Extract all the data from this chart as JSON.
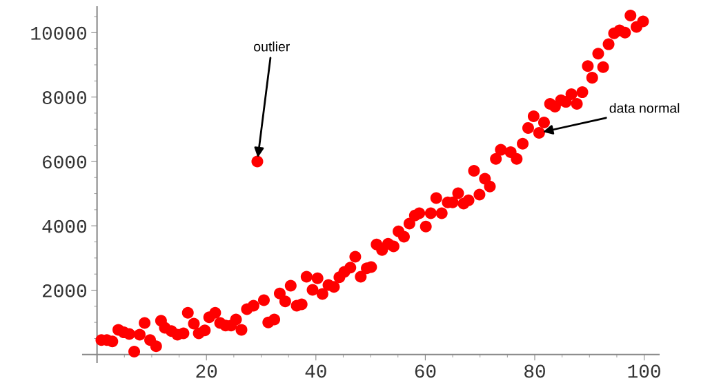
{
  "chart_data": {
    "type": "scatter",
    "marker": "circle",
    "grid": false,
    "legend": false,
    "x": [
      0.8,
      1.8,
      2.8,
      3.9,
      4.9,
      5.9,
      6.8,
      7.8,
      8.7,
      9.7,
      10.8,
      11.7,
      12.4,
      13.6,
      14.7,
      15.8,
      16.6,
      17.7,
      18.6,
      19.7,
      20.5,
      21.6,
      22.5,
      23.5,
      24.5,
      25.4,
      26.4,
      27.4,
      28.6,
      29.3,
      30.5,
      31.3,
      32.4,
      33.4,
      34.4,
      35.4,
      36.5,
      37.4,
      38.3,
      39.4,
      40.3,
      41.2,
      42.3,
      43.3,
      44.3,
      45.2,
      46.3,
      47.2,
      48.2,
      49.3,
      50.1,
      51.1,
      52.1,
      53.2,
      54.2,
      55.1,
      56.1,
      57.1,
      58.1,
      58.9,
      60.1,
      61.0,
      62.0,
      63.0,
      64.1,
      65.0,
      66.0,
      67.0,
      67.9,
      68.9,
      69.9,
      70.9,
      71.8,
      72.9,
      73.8,
      75.6,
      76.7,
      77.8,
      78.8,
      79.8,
      80.8,
      81.7,
      82.8,
      83.7,
      84.8,
      85.7,
      86.7,
      87.7,
      88.7,
      89.7,
      90.5,
      91.6,
      92.5,
      93.5,
      94.5,
      95.5,
      96.5,
      97.5,
      98.6,
      99.8
    ],
    "series": [
      {
        "color": "#ff0000",
        "values": [
          450,
          450,
          410,
          770,
          690,
          640,
          90,
          620,
          980,
          450,
          260,
          1050,
          830,
          730,
          620,
          660,
          1300,
          960,
          660,
          750,
          1160,
          1300,
          980,
          900,
          900,
          1090,
          770,
          1410,
          1520,
          6000,
          1690,
          1000,
          1090,
          1900,
          1650,
          2140,
          1520,
          1560,
          2420,
          2010,
          2370,
          1880,
          2160,
          2100,
          2400,
          2570,
          2700,
          3040,
          2420,
          2680,
          2720,
          3420,
          3250,
          3440,
          3360,
          3830,
          3660,
          4070,
          4320,
          4390,
          3980,
          4390,
          4860,
          4390,
          4730,
          4730,
          5010,
          4690,
          4790,
          5710,
          4970,
          5460,
          5220,
          6080,
          6360,
          6290,
          6080,
          6550,
          7040,
          7400,
          6890,
          7210,
          7790,
          7700,
          7900,
          7850,
          8090,
          7790,
          8150,
          8960,
          8600,
          9350,
          8930,
          9640,
          9980,
          10070,
          10000,
          10530,
          10180,
          10350
        ]
      }
    ],
    "xlim": [
      -2.6,
      102.7
    ],
    "ylim": [
      -240,
      10800
    ],
    "xticks": [
      20,
      40,
      60,
      80,
      100
    ],
    "yticks": [
      2000,
      4000,
      6000,
      8000,
      10000
    ],
    "annotations": [
      {
        "text": "outlier",
        "x": 29.3,
        "y": 6000
      },
      {
        "text": "data normal",
        "x": 80.8,
        "y": 6890
      }
    ]
  }
}
